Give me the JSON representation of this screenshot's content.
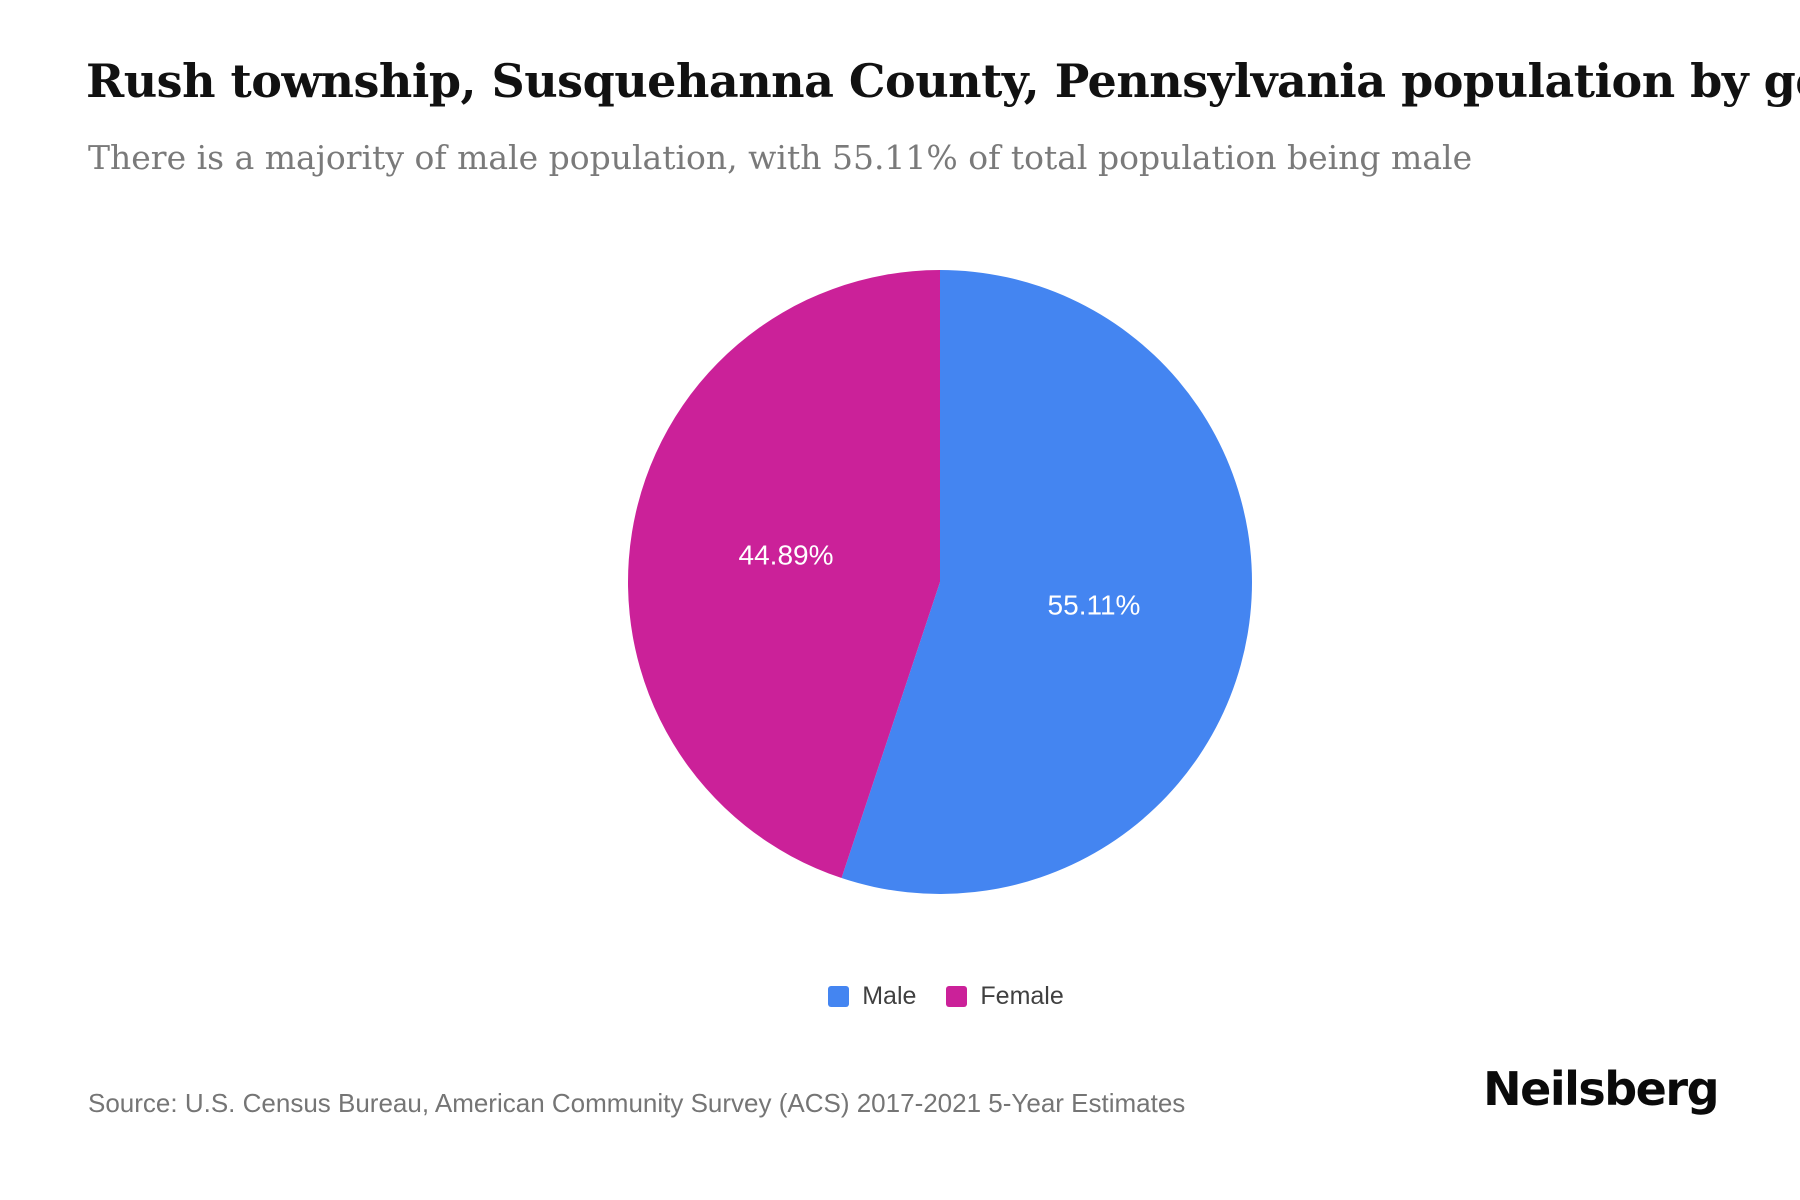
{
  "page": {
    "title": "Rush township, Susquehanna County, Pennsylvania population by gender",
    "subtitle": "There is a majority of male population, with 55.11% of total population being male",
    "source": "Source: U.S. Census Bureau, American Community Survey (ACS) 2017-2021 5-Year Estimates",
    "brand": "Neilsberg"
  },
  "chart_data": {
    "type": "pie",
    "title": "Rush township, Susquehanna County, Pennsylvania population by gender",
    "categories": [
      "Male",
      "Female"
    ],
    "values": [
      55.11,
      44.89
    ],
    "slice_labels": [
      "55.11%",
      "44.89%"
    ],
    "colors": [
      "#4485F1",
      "#CB2199"
    ],
    "label_color": "#ffffff",
    "legend_position": "bottom",
    "start_angle_deg": 0,
    "direction": "clockwise"
  }
}
